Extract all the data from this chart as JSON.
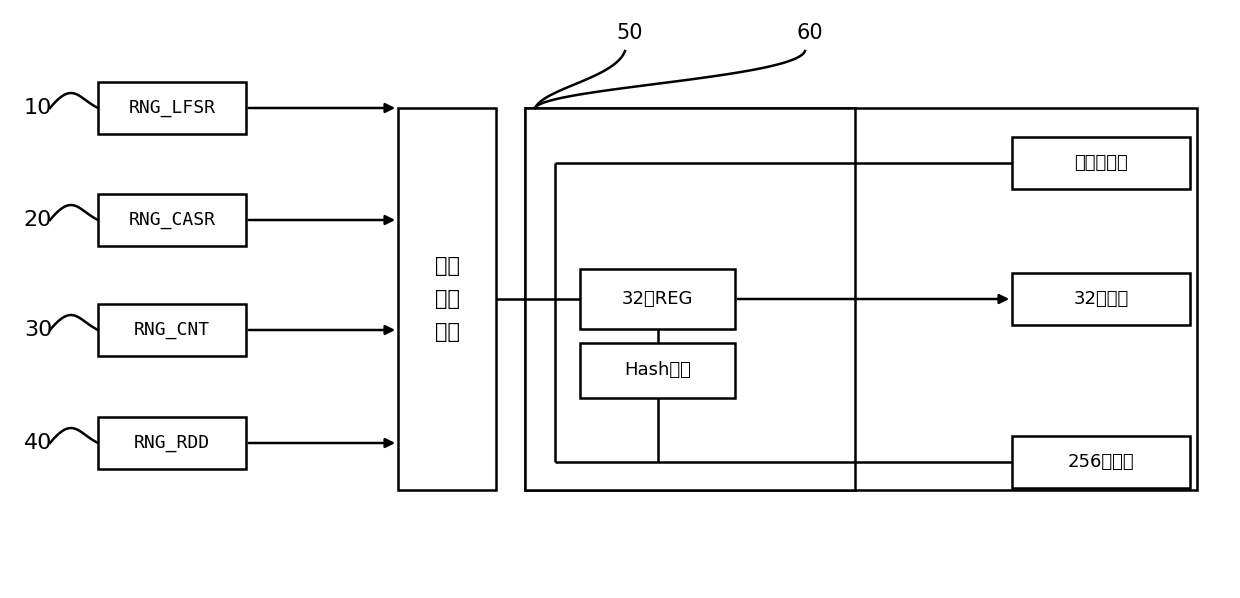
{
  "bg_color": "#ffffff",
  "line_color": "#000000",
  "box_color": "#ffffff",
  "text_color": "#000000",
  "input_labels": [
    "10",
    "20",
    "30",
    "40"
  ],
  "input_boxes": [
    "RNG_LFSR",
    "RNG_CASR",
    "RNG_CNT",
    "RNG_RDD"
  ],
  "logic_box_text": "逻辑\n异或\n电路",
  "block50_label": "50",
  "block60_label": "60",
  "inner_box1": "32乍REG",
  "inner_box2": "Hash扩散",
  "output_boxes": [
    "单比特输出",
    "32乍输出",
    "256乍输出"
  ],
  "figsize": [
    12.4,
    5.98
  ],
  "dpi": 100
}
